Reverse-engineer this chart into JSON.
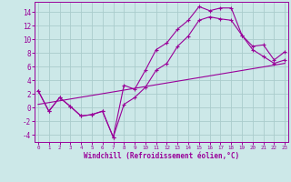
{
  "xlabel": "Windchill (Refroidissement éolien,°C)",
  "bg_color": "#cce8e8",
  "line_color": "#990099",
  "grid_color": "#aacccc",
  "series1_x": [
    0,
    1,
    2,
    3,
    4,
    5,
    6,
    7,
    8,
    9,
    10,
    11,
    12,
    13,
    14,
    15,
    16,
    17,
    18,
    19,
    20,
    21,
    22,
    23
  ],
  "series1_y": [
    2.5,
    -0.5,
    1.5,
    0.2,
    -1.2,
    -1.0,
    -0.5,
    -4.3,
    3.3,
    2.7,
    5.5,
    8.5,
    9.5,
    11.5,
    12.8,
    14.8,
    14.2,
    14.6,
    14.6,
    10.6,
    9.0,
    9.2,
    7.0,
    8.2
  ],
  "series2_x": [
    0,
    1,
    2,
    3,
    4,
    5,
    6,
    7,
    8,
    9,
    10,
    11,
    12,
    13,
    14,
    15,
    16,
    17,
    18,
    19,
    20,
    21,
    22,
    23
  ],
  "series2_y": [
    2.5,
    -0.5,
    1.5,
    0.2,
    -1.2,
    -1.0,
    -0.5,
    -4.3,
    0.5,
    1.5,
    3.0,
    5.5,
    6.5,
    9.0,
    10.5,
    12.8,
    13.3,
    13.0,
    12.8,
    10.6,
    8.5,
    7.5,
    6.5,
    7.0
  ],
  "series3_x": [
    0,
    23
  ],
  "series3_y": [
    0.5,
    6.5
  ],
  "ylim": [
    -5,
    15.5
  ],
  "xlim": [
    -0.3,
    23.3
  ],
  "yticks": [
    -4,
    -2,
    0,
    2,
    4,
    6,
    8,
    10,
    12,
    14
  ],
  "xticks": [
    0,
    1,
    2,
    3,
    4,
    5,
    6,
    7,
    8,
    9,
    10,
    11,
    12,
    13,
    14,
    15,
    16,
    17,
    18,
    19,
    20,
    21,
    22,
    23
  ]
}
